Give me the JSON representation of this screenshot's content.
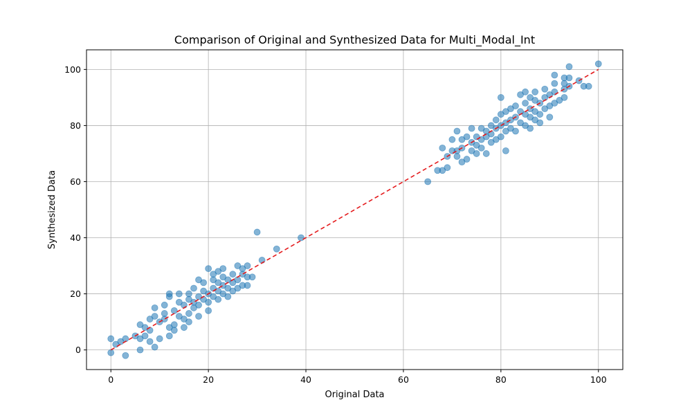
{
  "chart_data": {
    "type": "scatter",
    "title": "Comparison of Original and Synthesized Data for Multi_Modal_Int",
    "xlabel": "Original Data",
    "ylabel": "Synthesized Data",
    "xlim": [
      -5,
      105
    ],
    "ylim": [
      -7,
      107
    ],
    "xticks": [
      0,
      20,
      40,
      60,
      80,
      100
    ],
    "yticks": [
      0,
      20,
      40,
      60,
      80,
      100
    ],
    "grid": true,
    "legend": "none",
    "point_color": "#1f77b4",
    "point_alpha": 0.55,
    "reference_line": {
      "from": [
        0,
        0
      ],
      "to": [
        100,
        100
      ],
      "color": "#e41a1c",
      "style": "dashed"
    },
    "series": [
      {
        "values": [
          [
            0,
            4
          ],
          [
            0,
            -1
          ],
          [
            1,
            2
          ],
          [
            2,
            3
          ],
          [
            3,
            4
          ],
          [
            3,
            -2
          ],
          [
            5,
            5
          ],
          [
            6,
            9
          ],
          [
            6,
            4
          ],
          [
            6,
            0
          ],
          [
            7,
            5
          ],
          [
            7,
            8
          ],
          [
            8,
            3
          ],
          [
            8,
            7
          ],
          [
            8,
            11
          ],
          [
            9,
            1
          ],
          [
            9,
            12
          ],
          [
            9,
            15
          ],
          [
            10,
            4
          ],
          [
            10,
            10
          ],
          [
            11,
            11
          ],
          [
            11,
            13
          ],
          [
            11,
            16
          ],
          [
            12,
            5
          ],
          [
            12,
            8
          ],
          [
            12,
            19
          ],
          [
            12,
            20
          ],
          [
            13,
            7
          ],
          [
            13,
            9
          ],
          [
            13,
            14
          ],
          [
            14,
            12
          ],
          [
            14,
            17
          ],
          [
            14,
            20
          ],
          [
            15,
            8
          ],
          [
            15,
            11
          ],
          [
            15,
            16
          ],
          [
            16,
            10
          ],
          [
            16,
            13
          ],
          [
            16,
            18
          ],
          [
            16,
            20
          ],
          [
            17,
            15
          ],
          [
            17,
            17
          ],
          [
            17,
            22
          ],
          [
            18,
            12
          ],
          [
            18,
            16
          ],
          [
            18,
            19
          ],
          [
            18,
            25
          ],
          [
            19,
            18
          ],
          [
            19,
            21
          ],
          [
            19,
            24
          ],
          [
            20,
            14
          ],
          [
            20,
            17
          ],
          [
            20,
            20
          ],
          [
            20,
            29
          ],
          [
            21,
            19
          ],
          [
            21,
            22
          ],
          [
            21,
            25
          ],
          [
            21,
            27
          ],
          [
            22,
            18
          ],
          [
            22,
            21
          ],
          [
            22,
            24
          ],
          [
            22,
            28
          ],
          [
            23,
            20
          ],
          [
            23,
            23
          ],
          [
            23,
            26
          ],
          [
            23,
            29
          ],
          [
            24,
            19
          ],
          [
            24,
            22
          ],
          [
            24,
            25
          ],
          [
            25,
            21
          ],
          [
            25,
            24
          ],
          [
            25,
            27
          ],
          [
            26,
            22
          ],
          [
            26,
            25
          ],
          [
            26,
            30
          ],
          [
            27,
            23
          ],
          [
            27,
            27
          ],
          [
            27,
            29
          ],
          [
            28,
            23
          ],
          [
            28,
            26
          ],
          [
            28,
            30
          ],
          [
            29,
            26
          ],
          [
            30,
            42
          ],
          [
            31,
            32
          ],
          [
            34,
            36
          ],
          [
            39,
            40
          ],
          [
            65,
            60
          ],
          [
            67,
            64
          ],
          [
            68,
            64
          ],
          [
            68,
            72
          ],
          [
            69,
            65
          ],
          [
            69,
            69
          ],
          [
            70,
            71
          ],
          [
            70,
            75
          ],
          [
            71,
            71
          ],
          [
            71,
            78
          ],
          [
            71,
            69
          ],
          [
            72,
            67
          ],
          [
            72,
            75
          ],
          [
            72,
            72
          ],
          [
            73,
            68
          ],
          [
            73,
            76
          ],
          [
            74,
            71
          ],
          [
            74,
            74
          ],
          [
            74,
            79
          ],
          [
            75,
            70
          ],
          [
            75,
            73
          ],
          [
            75,
            76
          ],
          [
            76,
            72
          ],
          [
            76,
            75
          ],
          [
            76,
            79
          ],
          [
            77,
            70
          ],
          [
            77,
            76
          ],
          [
            77,
            78
          ],
          [
            78,
            74
          ],
          [
            78,
            77
          ],
          [
            78,
            80
          ],
          [
            79,
            75
          ],
          [
            79,
            79
          ],
          [
            79,
            82
          ],
          [
            80,
            76
          ],
          [
            80,
            80
          ],
          [
            80,
            84
          ],
          [
            80,
            90
          ],
          [
            81,
            71
          ],
          [
            81,
            78
          ],
          [
            81,
            81
          ],
          [
            81,
            85
          ],
          [
            82,
            79
          ],
          [
            82,
            82
          ],
          [
            82,
            86
          ],
          [
            83,
            78
          ],
          [
            83,
            83
          ],
          [
            83,
            87
          ],
          [
            84,
            81
          ],
          [
            84,
            85
          ],
          [
            84,
            91
          ],
          [
            85,
            80
          ],
          [
            85,
            84
          ],
          [
            85,
            88
          ],
          [
            85,
            92
          ],
          [
            86,
            79
          ],
          [
            86,
            83
          ],
          [
            86,
            86
          ],
          [
            86,
            90
          ],
          [
            87,
            82
          ],
          [
            87,
            85
          ],
          [
            87,
            89
          ],
          [
            87,
            92
          ],
          [
            88,
            81
          ],
          [
            88,
            84
          ],
          [
            88,
            88
          ],
          [
            89,
            86
          ],
          [
            89,
            90
          ],
          [
            89,
            93
          ],
          [
            90,
            83
          ],
          [
            90,
            87
          ],
          [
            90,
            91
          ],
          [
            91,
            88
          ],
          [
            91,
            92
          ],
          [
            91,
            95
          ],
          [
            91,
            98
          ],
          [
            92,
            89
          ],
          [
            93,
            90
          ],
          [
            93,
            93
          ],
          [
            93,
            95
          ],
          [
            93,
            97
          ],
          [
            94,
            94
          ],
          [
            94,
            97
          ],
          [
            94,
            101
          ],
          [
            96,
            96
          ],
          [
            97,
            94
          ],
          [
            98,
            94
          ],
          [
            100,
            102
          ]
        ]
      }
    ]
  }
}
